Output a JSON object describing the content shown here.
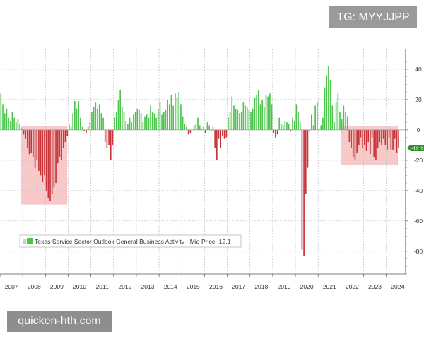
{
  "watermarks": {
    "top": "TG: MYYJJPP",
    "bottom": "quicken-hth.com"
  },
  "colors": {
    "positive": "#4cc54c",
    "negative": "#c7353a",
    "highlight": "#f6c0c0",
    "grid": "#bdbdbd",
    "axis": "#3e9a3e",
    "last_price_tag": "#2f8f2f"
  },
  "chart_data": {
    "type": "bar",
    "title": "Texas Service Sector Outlook General Business Activity - Mid Price",
    "legend_label": "Texas Service Sector Outlook General Business Activity - Mid Price -12.1",
    "legend_placement": "bottom-left",
    "last_value": -12.1,
    "last_value_label": "-12.1",
    "ylim": [
      -95,
      53
    ],
    "xlim": [
      2007.0,
      2024.85
    ],
    "y_ticks": [
      40,
      20,
      0,
      -20,
      -40,
      -60,
      -80
    ],
    "y_tick_labels": [
      "40",
      "20",
      "0",
      "-20",
      "-40",
      "-60",
      "-80"
    ],
    "x_ticks": [
      2007,
      2008,
      2009,
      2010,
      2011,
      2012,
      2013,
      2014,
      2015,
      2016,
      2017,
      2018,
      2019,
      2020,
      2021,
      2022,
      2023,
      2024
    ],
    "x_tick_labels": [
      "2007",
      "2008",
      "2009",
      "2010",
      "2011",
      "2012",
      "2013",
      "2014",
      "2015",
      "2016",
      "2017",
      "2018",
      "2019",
      "2020",
      "2021",
      "2022",
      "2023",
      "2024"
    ],
    "highlight_periods": [
      {
        "start": 2007.95,
        "end": 2009.95,
        "ymin": -49,
        "ymax": 2
      },
      {
        "start": 2022.0,
        "end": 2024.5,
        "ymin": -23,
        "ymax": 2
      }
    ],
    "series": [
      {
        "name": "Texas Service Sector Outlook General Business Activity",
        "start_year": 2007.0,
        "start_month": 1,
        "frequency": "monthly",
        "values": [
          24,
          17,
          11,
          14,
          8,
          6,
          12,
          8,
          5,
          7,
          4,
          1,
          -3,
          -6,
          -12,
          -16,
          -15,
          -18,
          -25,
          -20,
          -27,
          -30,
          -34,
          -30,
          -40,
          -45,
          -47,
          -42,
          -38,
          -35,
          -22,
          -18,
          -20,
          -12,
          -8,
          -4,
          4,
          2,
          11,
          19,
          14,
          19,
          8,
          2,
          -1,
          -2,
          2,
          5,
          12,
          15,
          18,
          14,
          17,
          11,
          8,
          -8,
          -12,
          -10,
          -20,
          -10,
          8,
          12,
          20,
          26,
          15,
          12,
          6,
          4,
          8,
          5,
          10,
          12,
          14,
          13,
          11,
          5,
          9,
          10,
          8,
          16,
          12,
          11,
          8,
          14,
          18,
          10,
          12,
          13,
          20,
          17,
          23,
          16,
          24,
          21,
          25,
          17,
          9,
          4,
          2,
          -3,
          -2,
          0,
          3,
          4,
          8,
          3,
          1,
          2,
          -2,
          5,
          3,
          -1,
          2,
          -12,
          -20,
          -6,
          -12,
          -4,
          -6,
          -5,
          8,
          12,
          22,
          16,
          14,
          13,
          11,
          12,
          18,
          16,
          15,
          13,
          12,
          14,
          21,
          23,
          26,
          17,
          20,
          15,
          23,
          22,
          24,
          17,
          -2,
          -5,
          -3,
          8,
          4,
          3,
          6,
          5,
          4,
          -1,
          8,
          6,
          17,
          12,
          5,
          -79,
          -83,
          -42,
          -25,
          -1,
          10,
          3,
          16,
          18,
          1,
          3,
          8,
          28,
          36,
          42,
          33,
          16,
          5,
          18,
          24,
          12,
          7,
          16,
          12,
          9,
          -8,
          -12,
          -18,
          -20,
          -15,
          -10,
          -5,
          -12,
          -10,
          -14,
          -8,
          -16,
          -5,
          -18,
          -20,
          -12,
          -8,
          -10,
          -6,
          -10,
          -13,
          -5,
          -13,
          -13,
          -6,
          -15,
          -12.1
        ]
      }
    ]
  }
}
